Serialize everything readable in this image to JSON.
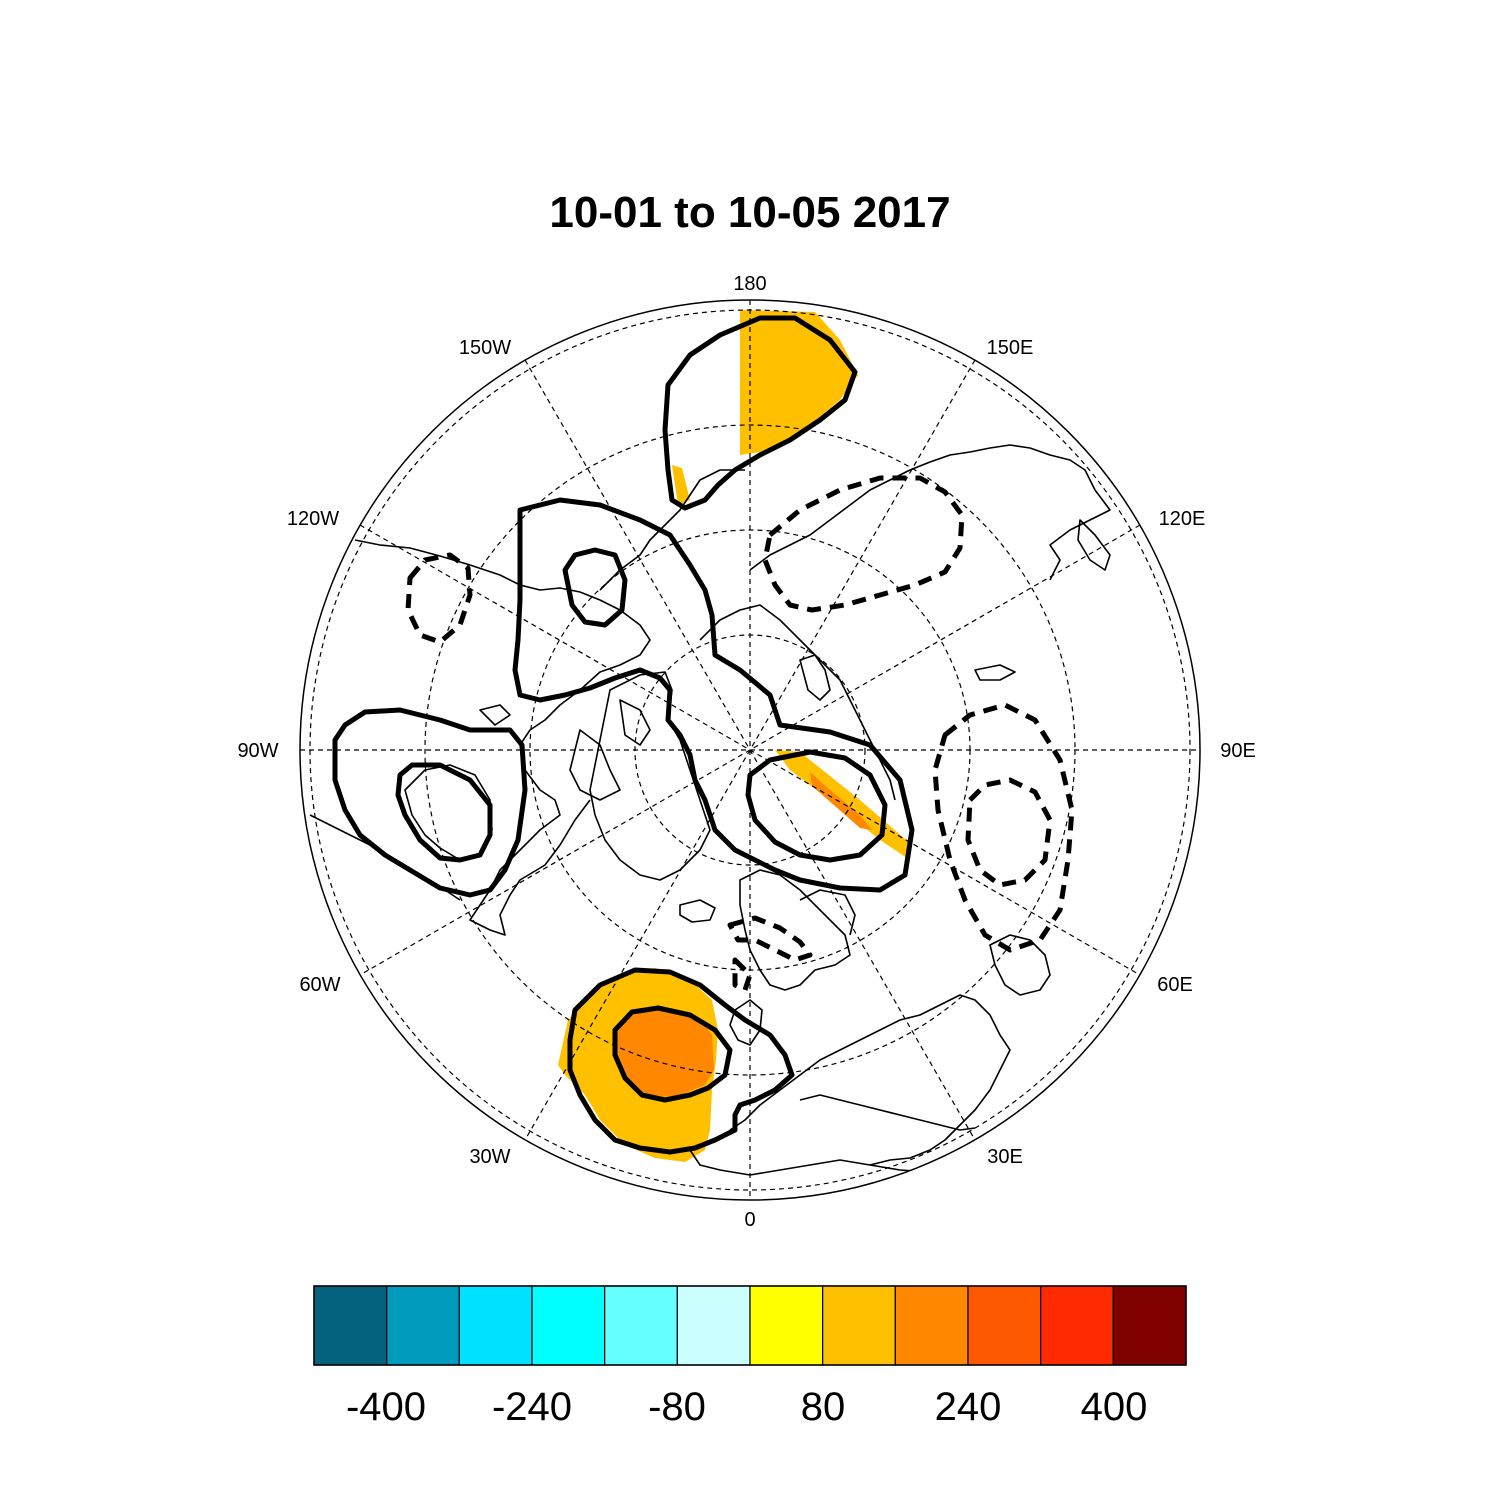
{
  "title": "10-01 to 10-05 2017",
  "map": {
    "projection": "north-polar-stereographic",
    "longitude_labels": [
      "180",
      "150E",
      "120E",
      "90E",
      "60E",
      "30E",
      "0",
      "30W",
      "60W",
      "90W",
      "120W",
      "150W"
    ],
    "fill_levels_shown": [
      120,
      200
    ],
    "contour_style": {
      "positive": "solid",
      "negative": "dashed"
    }
  },
  "colorbar": {
    "colors": [
      "#05627f",
      "#009bbd",
      "#00e0ff",
      "#00ffff",
      "#66ffff",
      "#ccffff",
      "#ffff00",
      "#ffc000",
      "#ff8800",
      "#ff5900",
      "#ff2a00",
      "#800000"
    ],
    "tick_labels": [
      "-400",
      "-240",
      "-80",
      "80",
      "240",
      "400"
    ]
  }
}
